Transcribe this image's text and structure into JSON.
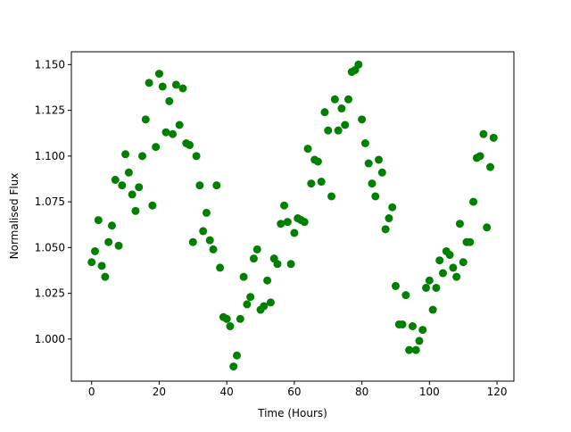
{
  "chart_data": {
    "type": "scatter",
    "x_label": "Time (Hours)",
    "y_label": "Normalised Flux",
    "series": [
      {
        "color": "#008000",
        "x": [
          0,
          1,
          2,
          3,
          4,
          5,
          6,
          7,
          8,
          9,
          10,
          11,
          12,
          13,
          14,
          15,
          16,
          17,
          18,
          19,
          20,
          21,
          22,
          23,
          24,
          25,
          26,
          27,
          28,
          29,
          30,
          31,
          32,
          33,
          34,
          35,
          36,
          37,
          38,
          39,
          40,
          41,
          42,
          43,
          44,
          45,
          46,
          47,
          48,
          49,
          50,
          51,
          52,
          53,
          54,
          55,
          56,
          57,
          58,
          59,
          60,
          61,
          62,
          63,
          64,
          65,
          66,
          67,
          68,
          69,
          70,
          71,
          72,
          73,
          74,
          75,
          76,
          77,
          78,
          79,
          80,
          81,
          82,
          83,
          84,
          85,
          86,
          87,
          88,
          89,
          90,
          91,
          92,
          93,
          94,
          95,
          96,
          97,
          98,
          99,
          100,
          101,
          102,
          103,
          104,
          105,
          106,
          107,
          108,
          109,
          110,
          111,
          112,
          113,
          114,
          115,
          116,
          117,
          118,
          119
        ],
        "values": [
          1.042,
          1.048,
          1.065,
          1.04,
          1.034,
          1.053,
          1.062,
          1.087,
          1.051,
          1.084,
          1.101,
          1.091,
          1.079,
          1.07,
          1.083,
          1.1,
          1.12,
          1.14,
          1.073,
          1.105,
          1.145,
          1.138,
          1.113,
          1.13,
          1.112,
          1.139,
          1.117,
          1.137,
          1.107,
          1.106,
          1.053,
          1.1,
          1.084,
          1.059,
          1.069,
          1.054,
          1.049,
          1.084,
          1.039,
          1.012,
          1.011,
          1.007,
          0.985,
          0.991,
          1.011,
          1.034,
          1.019,
          1.023,
          1.044,
          1.049,
          1.016,
          1.018,
          1.032,
          1.02,
          1.044,
          1.041,
          1.063,
          1.073,
          1.064,
          1.041,
          1.058,
          1.066,
          1.065,
          1.064,
          1.104,
          1.085,
          1.098,
          1.097,
          1.086,
          1.124,
          1.114,
          1.078,
          1.131,
          1.114,
          1.126,
          1.117,
          1.131,
          1.146,
          1.147,
          1.15,
          1.12,
          1.107,
          1.096,
          1.085,
          1.078,
          1.098,
          1.091,
          1.06,
          1.066,
          1.072,
          1.029,
          1.008,
          1.008,
          1.024,
          0.994,
          1.007,
          0.994,
          0.999,
          1.005,
          1.028,
          1.032,
          1.016,
          1.028,
          1.043,
          1.036,
          1.048,
          1.046,
          1.039,
          1.034,
          1.063,
          1.042,
          1.053,
          1.053,
          1.075,
          1.099,
          1.1,
          1.112,
          1.061,
          1.094,
          1.11
        ]
      }
    ],
    "xlim": [
      -6,
      125
    ],
    "ylim": [
      0.977,
      1.157
    ],
    "xticks": [
      0,
      20,
      40,
      60,
      80,
      100,
      120
    ],
    "yticks": [
      {
        "value": 1,
        "label": "1.000"
      },
      {
        "value": 1.025,
        "label": "1.025"
      },
      {
        "value": 1.05,
        "label": "1.050"
      },
      {
        "value": 1.075,
        "label": "1.075"
      },
      {
        "value": 1.1,
        "label": "1.100"
      },
      {
        "value": 1.125,
        "label": "1.125"
      },
      {
        "value": 1.15,
        "label": "1.150"
      }
    ]
  }
}
